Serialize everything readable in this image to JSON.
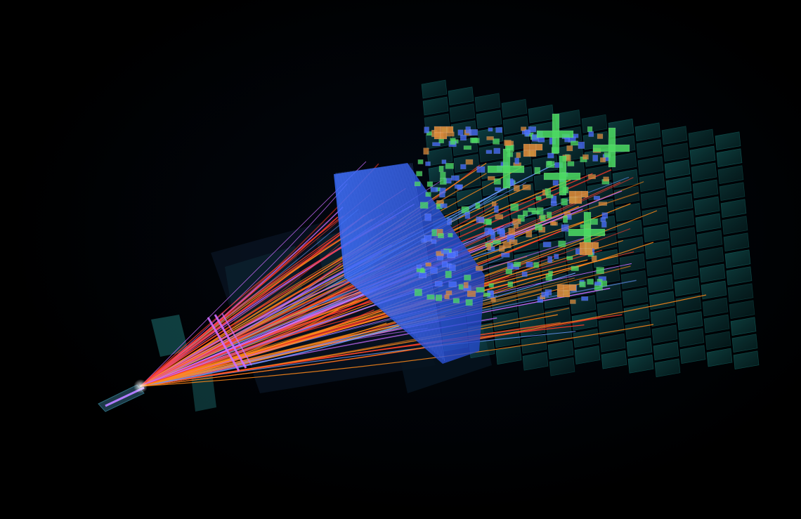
{
  "scene": {
    "subject": "particle-collision-event-display",
    "background_color": "#000000",
    "colors": {
      "muon_panel": "#1fb7b0",
      "calorimeter_wall": "#2f5fe0",
      "ecal_cell": "#4a6fff",
      "hcal_cell_green": "#4ddc63",
      "hcal_cell_orange": "#d9893a",
      "track_red": "#ff3a2a",
      "track_orange": "#ff8a1a",
      "track_magenta": "#c96bff",
      "track_blue": "#6b9cff",
      "beam_pipe": "#b07cff",
      "vertex_station": "#d06bff",
      "detector_shadow": "#0a1a2a"
    }
  }
}
